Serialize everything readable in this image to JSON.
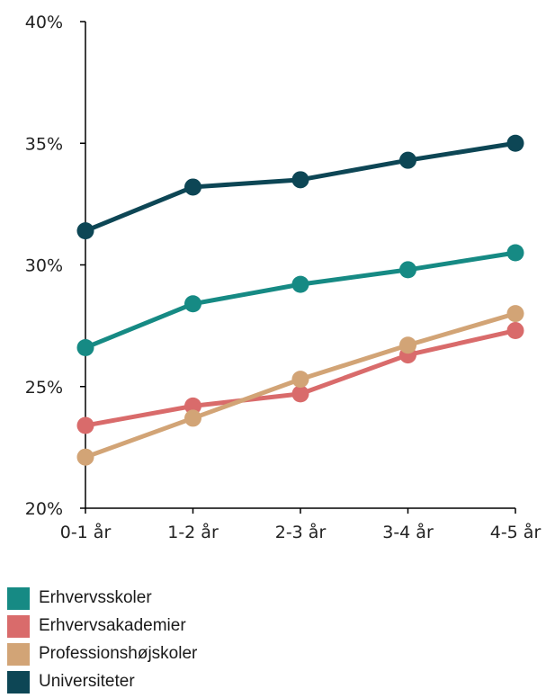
{
  "chart_data": {
    "type": "line",
    "categories": [
      "0-1 år",
      "1-2 år",
      "2-3 år",
      "3-4 år",
      "4-5 år"
    ],
    "y_ticks": [
      "20%",
      "25%",
      "30%",
      "35%",
      "40%"
    ],
    "ylim": [
      20,
      40
    ],
    "y_unit": "%",
    "grid": false,
    "legend_position": "bottom-left",
    "series": [
      {
        "name": "Erhvervsskoler",
        "color": "#168A84",
        "values": [
          26.6,
          28.4,
          29.2,
          29.8,
          30.5
        ]
      },
      {
        "name": "Erhvervsakademier",
        "color": "#D96B6B",
        "values": [
          23.4,
          24.2,
          24.7,
          26.3,
          27.3
        ]
      },
      {
        "name": "Professionshøjskoler",
        "color": "#D2A476",
        "values": [
          22.1,
          23.7,
          25.3,
          26.7,
          28.0
        ]
      },
      {
        "name": "Universiteter",
        "color": "#0D4655",
        "values": [
          31.4,
          33.2,
          33.5,
          34.3,
          35.0
        ]
      }
    ]
  }
}
